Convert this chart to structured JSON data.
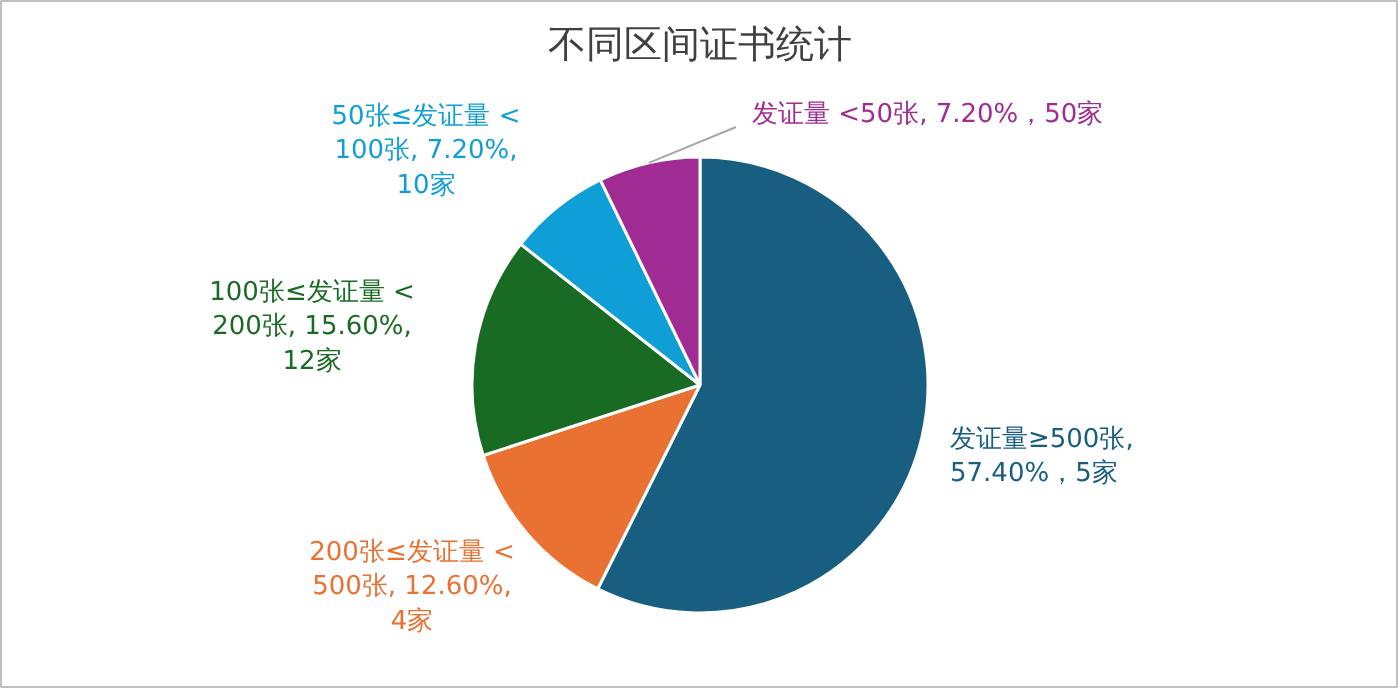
{
  "chart_data": {
    "type": "pie",
    "title": "不同区间证书统计",
    "categories": [
      "发证量≥500张",
      "200张≤发证量 <\n500张",
      "100张≤发证量 <\n200张",
      "50张≤发证量 <\n100张",
      "发证量 <50张"
    ],
    "values": [
      57.4,
      12.6,
      15.6,
      7.2,
      7.2
    ],
    "value_labels": [
      ",\n57.40%，5家",
      "12.60%,\n4家",
      "15.60%,\n12家",
      "7.20%,\n10家",
      "7.20%，50家"
    ],
    "colors": [
      "#175e80",
      "#e97132",
      "#196b24",
      "#0f9ed5",
      "#a02b93"
    ]
  }
}
